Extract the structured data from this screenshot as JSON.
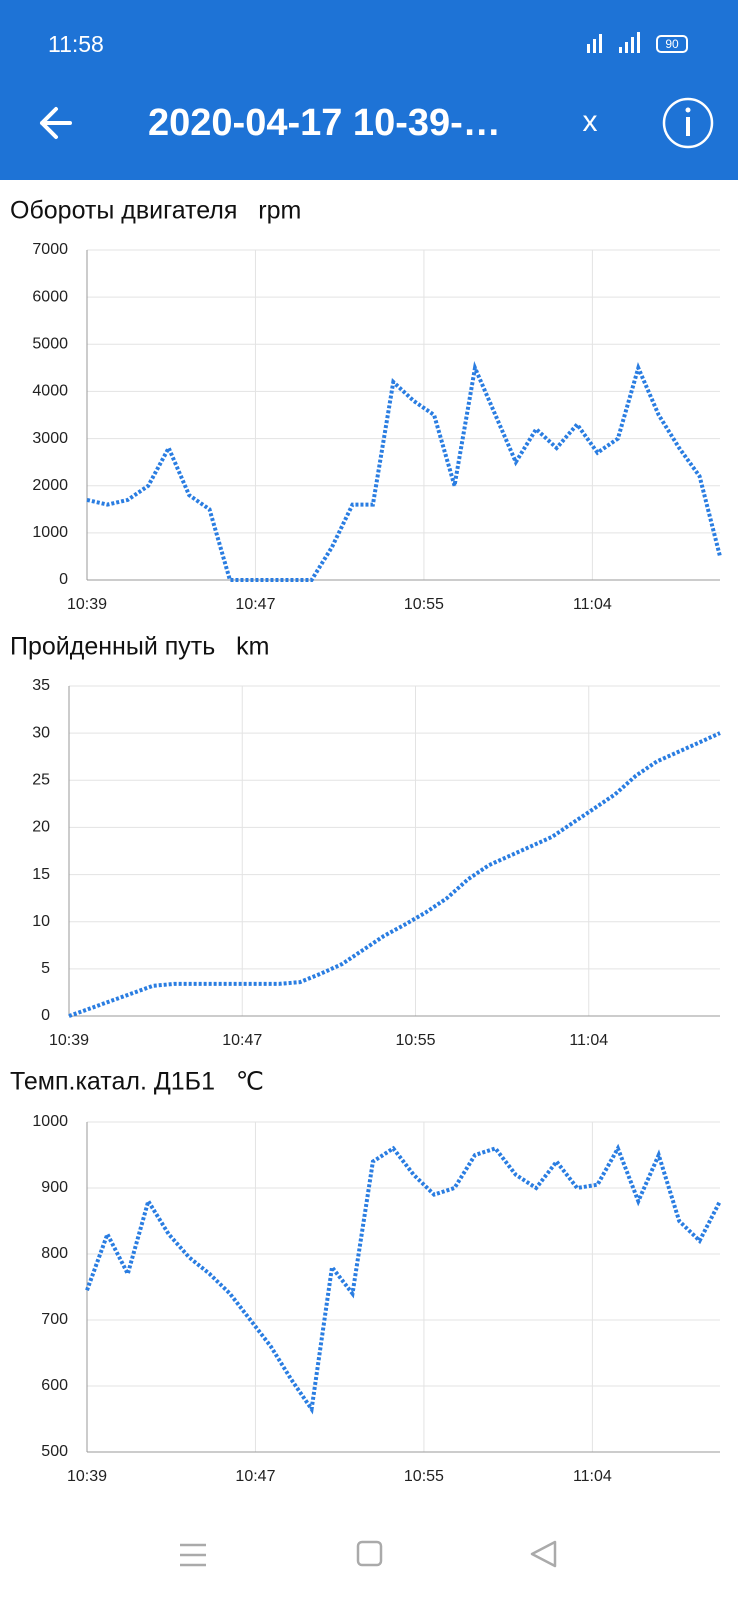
{
  "status_bar": {
    "time": "11:58",
    "battery": "90"
  },
  "header": {
    "title": "2020-04-17 10-39-…",
    "close": "x"
  },
  "chart_data": [
    {
      "type": "line",
      "title": "Обороты двигателя   rpm",
      "color": "#2a7de1",
      "grid": true,
      "x": [
        "10:39",
        "10:40",
        "10:41",
        "10:42",
        "10:43",
        "10:44",
        "10:45",
        "10:46",
        "10:47",
        "10:48",
        "10:49",
        "10:50",
        "10:51",
        "10:52",
        "10:53",
        "10:54",
        "10:55",
        "10:56",
        "10:57",
        "10:58",
        "10:59",
        "11:00",
        "11:01",
        "11:02",
        "11:03",
        "11:04",
        "11:05",
        "11:06",
        "11:07",
        "11:08",
        "11:09",
        "11:10"
      ],
      "values": [
        1700,
        1600,
        1700,
        2000,
        2800,
        1800,
        1500,
        0,
        0,
        0,
        0,
        0,
        700,
        1600,
        1600,
        4200,
        3800,
        3500,
        2000,
        4500,
        3500,
        2500,
        3200,
        2800,
        3300,
        2700,
        3000,
        4500,
        3500,
        2800,
        2200,
        500
      ],
      "xlim": [
        "10:39",
        "11:10"
      ],
      "xticks": [
        {
          "value": "10:39",
          "label": "10:39"
        },
        {
          "value": "10:47:15",
          "label": "10:47"
        },
        {
          "value": "10:55:30",
          "label": "10:55"
        },
        {
          "value": "11:03:45",
          "label": "11:04"
        }
      ],
      "ylim": [
        0,
        7000
      ],
      "yticks": [
        0,
        1000,
        2000,
        3000,
        4000,
        5000,
        6000,
        7000
      ]
    },
    {
      "type": "line",
      "title": "Пройденный путь   km",
      "color": "#2a7de1",
      "grid": true,
      "x": [
        "10:39",
        "10:40",
        "10:41",
        "10:42",
        "10:43",
        "10:44",
        "10:45",
        "10:46",
        "10:47",
        "10:48",
        "10:49",
        "10:50",
        "10:51",
        "10:52",
        "10:53",
        "10:54",
        "10:55",
        "10:56",
        "10:57",
        "10:58",
        "10:59",
        "11:00",
        "11:01",
        "11:02",
        "11:03",
        "11:04",
        "11:05",
        "11:06",
        "11:07",
        "11:08",
        "11:09",
        "11:10"
      ],
      "values": [
        0,
        0.8,
        1.6,
        2.4,
        3.2,
        3.4,
        3.4,
        3.4,
        3.4,
        3.4,
        3.4,
        3.6,
        4.5,
        5.5,
        7,
        8.5,
        9.7,
        11,
        12.5,
        14.5,
        16,
        17,
        18,
        19,
        20.5,
        22,
        23.5,
        25.5,
        27,
        28,
        29,
        30
      ],
      "xlim": [
        "10:39",
        "11:10"
      ],
      "xticks": [
        {
          "value": "10:39",
          "label": "10:39"
        },
        {
          "value": "10:47:15",
          "label": "10:47"
        },
        {
          "value": "10:55:30",
          "label": "10:55"
        },
        {
          "value": "11:03:45",
          "label": "11:04"
        }
      ],
      "ylim": [
        0,
        35
      ],
      "yticks": [
        0,
        5,
        10,
        15,
        20,
        25,
        30,
        35
      ]
    },
    {
      "type": "line",
      "title": "Темп.катал. Д1Б1   ℃",
      "color": "#2a7de1",
      "grid": true,
      "x": [
        "10:39",
        "10:40",
        "10:41",
        "10:42",
        "10:43",
        "10:44",
        "10:45",
        "10:46",
        "10:47",
        "10:48",
        "10:49",
        "10:50",
        "10:51",
        "10:52",
        "10:53",
        "10:54",
        "10:55",
        "10:56",
        "10:57",
        "10:58",
        "10:59",
        "11:00",
        "11:01",
        "11:02",
        "11:03",
        "11:04",
        "11:05",
        "11:06",
        "11:07",
        "11:08",
        "11:09",
        "11:10"
      ],
      "values": [
        745,
        830,
        770,
        880,
        830,
        795,
        770,
        740,
        700,
        660,
        610,
        565,
        780,
        740,
        940,
        960,
        920,
        890,
        900,
        950,
        960,
        920,
        900,
        940,
        900,
        905,
        960,
        880,
        950,
        850,
        820,
        880
      ],
      "xlim": [
        "10:39",
        "11:10"
      ],
      "xticks": [
        {
          "value": "10:39",
          "label": "10:39"
        },
        {
          "value": "10:47:15",
          "label": "10:47"
        },
        {
          "value": "10:55:30",
          "label": "10:55"
        },
        {
          "value": "11:03:45",
          "label": "11:04"
        }
      ],
      "ylim": [
        500,
        1000
      ],
      "yticks": [
        500,
        600,
        700,
        800,
        900,
        1000
      ]
    }
  ]
}
